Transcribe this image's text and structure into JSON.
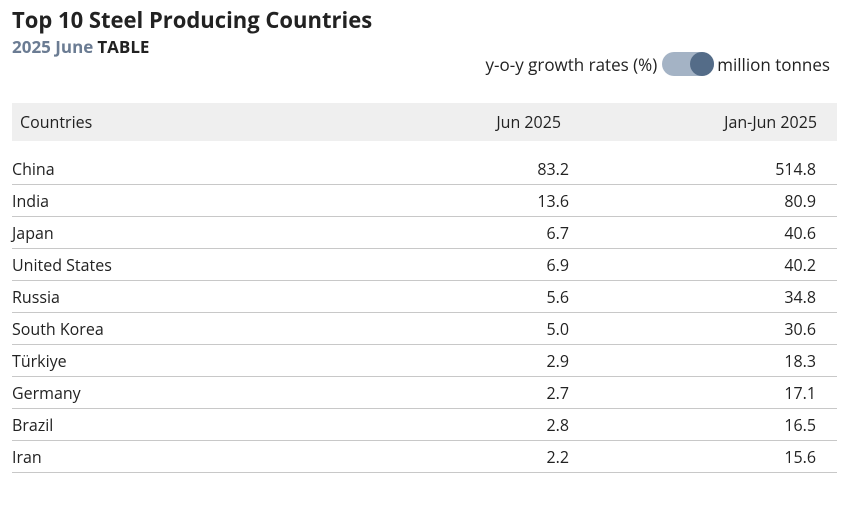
{
  "header": {
    "title": "Top 10 Steel Producing Countries",
    "period": "2025 June",
    "mode": "TABLE"
  },
  "toggle": {
    "left_label": "y-o-y growth rates (%)",
    "right_label": "million tonnes",
    "selected": "million tonnes"
  },
  "colors": {
    "period_text": "#6b7c93",
    "toggle_track": "#a4b3c5",
    "toggle_knob": "#546c88",
    "header_bg": "#efefef"
  },
  "table": {
    "columns": [
      "Countries",
      "Jun 2025",
      "Jan-Jun 2025"
    ],
    "rows": [
      [
        "China",
        "83.2",
        "514.8"
      ],
      [
        "India",
        "13.6",
        "80.9"
      ],
      [
        "Japan",
        "6.7",
        "40.6"
      ],
      [
        "United States",
        "6.9",
        "40.2"
      ],
      [
        "Russia",
        "5.6",
        "34.8"
      ],
      [
        "South Korea",
        "5.0",
        "30.6"
      ],
      [
        "Türkiye",
        "2.9",
        "18.3"
      ],
      [
        "Germany",
        "2.7",
        "17.1"
      ],
      [
        "Brazil",
        "2.8",
        "16.5"
      ],
      [
        "Iran",
        "2.2",
        "15.6"
      ]
    ]
  }
}
